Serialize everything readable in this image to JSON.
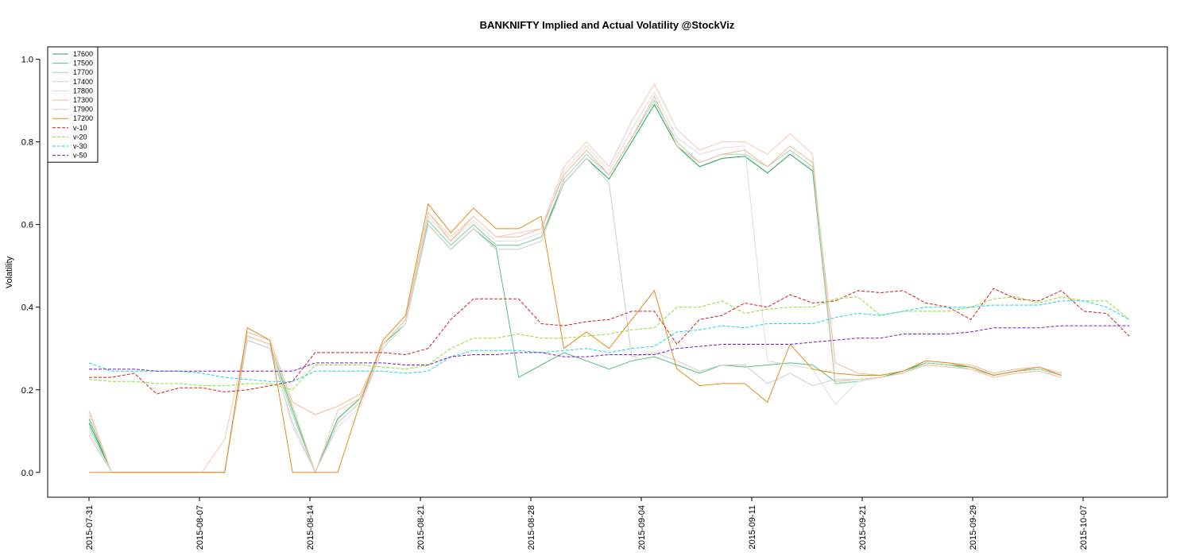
{
  "chart_data": {
    "type": "line",
    "title": "BANKNIFTY Implied and Actual Volatility @StockViz",
    "xlabel": "",
    "ylabel": "Volatility",
    "ylim": [
      -0.06,
      1.03
    ],
    "yticks": [
      "0.0",
      "0.2",
      "0.4",
      "0.6",
      "0.8",
      "1.0"
    ],
    "ytick_values": [
      0,
      0.2,
      0.4,
      0.6,
      0.8,
      1.0
    ],
    "x_index_range": [
      -0.5,
      39.7
    ],
    "xticks": [
      {
        "index": 0,
        "label": "2015-07-31"
      },
      {
        "index": 5,
        "label": "2015-08-07"
      },
      {
        "index": 10,
        "label": "2015-08-14"
      },
      {
        "index": 15,
        "label": "2015-08-21"
      },
      {
        "index": 20,
        "label": "2015-08-28"
      },
      {
        "index": 25,
        "label": "2015-09-04"
      },
      {
        "index": 30,
        "label": "2015-09-11"
      },
      {
        "index": 35,
        "label": "2015-09-21"
      },
      {
        "index": 40,
        "label": "2015-09-29"
      },
      {
        "index": 45,
        "label": "2015-10-07"
      }
    ],
    "legend_position": "top-left",
    "grid": false,
    "series": [
      {
        "name": "17600",
        "color": "#1aa84b",
        "dash": "",
        "values": [
          0.12,
          0,
          0,
          0,
          0,
          0,
          0,
          0.33,
          0.31,
          0.16,
          0.0,
          0.13,
          0.18,
          0.31,
          0.37,
          0.61,
          0.55,
          0.6,
          0.55,
          0.55,
          0.57,
          0.7,
          0.76,
          0.71,
          0.8,
          0.89,
          0.79,
          0.74,
          0.76,
          0.765,
          0.725,
          0.77,
          0.73,
          0.215,
          0.22,
          0.23,
          0.245,
          0.265,
          0.26,
          0.255,
          0.235,
          0.245,
          0.25,
          0.235
        ]
      },
      {
        "name": "17500",
        "color": "#52c17f",
        "dash": "",
        "values": [
          0.13,
          0,
          0,
          0,
          0,
          0,
          0,
          0.33,
          0.31,
          0.15,
          0.0,
          0.13,
          0.18,
          0.31,
          0.36,
          0.6,
          0.54,
          0.59,
          0.545,
          0.23,
          0.26,
          0.29,
          0.27,
          0.25,
          0.27,
          0.28,
          0.26,
          0.24,
          0.26,
          0.255,
          0.26,
          0.265,
          0.26,
          0.22,
          0.225,
          0.23,
          0.24,
          0.26,
          0.255,
          0.25,
          0.23,
          0.24,
          0.245,
          0.23
        ]
      },
      {
        "name": "17700",
        "color": "#9ed8b0",
        "dash": "",
        "values": [
          0.11,
          0,
          0,
          0,
          0,
          0,
          0,
          0.32,
          0.3,
          0.14,
          0.0,
          0.12,
          0.17,
          0.3,
          0.36,
          0.61,
          0.55,
          0.6,
          0.55,
          0.55,
          0.57,
          0.71,
          0.77,
          0.72,
          0.81,
          0.9,
          0.8,
          0.75,
          0.77,
          0.77,
          0.74,
          0.78,
          0.74,
          0.215,
          0.22,
          0.23,
          0.24,
          0.265,
          0.26,
          0.25,
          0.235,
          0.245,
          0.25,
          0.235
        ]
      },
      {
        "name": "17400",
        "color": "#cccccc",
        "dash": "",
        "values": [
          0.09,
          0,
          0,
          0,
          0,
          0,
          0,
          0.32,
          0.3,
          0.12,
          0.0,
          0.12,
          0.17,
          0.3,
          0.36,
          0.6,
          0.54,
          0.59,
          0.54,
          0.54,
          0.56,
          0.7,
          0.76,
          0.7,
          0.28,
          0.29,
          0.27,
          0.245,
          0.26,
          0.26,
          0.215,
          0.24,
          0.21,
          0.225,
          0.225,
          0.23,
          0.24,
          0.26,
          0.255,
          0.25,
          0.23,
          0.24,
          0.245,
          0.23
        ]
      },
      {
        "name": "17800",
        "color": "#dddddd",
        "dash": "",
        "values": [
          0.1,
          0,
          0,
          0,
          0,
          0,
          0,
          0.33,
          0.31,
          0.11,
          0.0,
          0.11,
          0.16,
          0.3,
          0.36,
          0.62,
          0.56,
          0.61,
          0.56,
          0.56,
          0.58,
          0.73,
          0.79,
          0.73,
          0.83,
          0.92,
          0.81,
          0.77,
          0.785,
          0.79,
          0.27,
          0.26,
          0.25,
          0.165,
          0.22,
          0.23,
          0.24,
          0.26,
          0.255,
          0.25,
          0.23,
          0.24,
          0.245,
          0.23
        ]
      },
      {
        "name": "17300",
        "color": "#f0b89a",
        "dash": "",
        "values": [
          0.15,
          0,
          0,
          0,
          0,
          0,
          0,
          0.34,
          0.32,
          0.17,
          0.14,
          0.16,
          0.19,
          0.31,
          0.37,
          0.63,
          0.56,
          0.62,
          0.57,
          0.57,
          0.59,
          0.72,
          0.78,
          0.72,
          0.81,
          0.91,
          0.79,
          0.75,
          0.77,
          0.78,
          0.74,
          0.79,
          0.75,
          0.265,
          0.24,
          0.235,
          0.245,
          0.27,
          0.265,
          0.26,
          0.24,
          0.25,
          0.255,
          0.24
        ]
      },
      {
        "name": "17900",
        "color": "#f5c9b0",
        "dash": "",
        "values": [
          0.14,
          0,
          0,
          0,
          0,
          0,
          0.08,
          0.33,
          0.31,
          0.16,
          0.0,
          0.15,
          0.18,
          0.31,
          0.37,
          0.63,
          0.57,
          0.62,
          0.57,
          0.58,
          0.59,
          0.74,
          0.8,
          0.74,
          0.85,
          0.94,
          0.83,
          0.78,
          0.8,
          0.8,
          0.77,
          0.82,
          0.77,
          0.22,
          0.225,
          0.23,
          0.24,
          0.26,
          0.255,
          0.25,
          0.23,
          0.24,
          0.245,
          0.23
        ]
      },
      {
        "name": "17200",
        "color": "#e38b1c",
        "dash": "",
        "values": [
          0,
          0,
          0,
          0,
          0,
          0,
          0,
          0.35,
          0.32,
          0,
          0,
          0,
          0.17,
          0.32,
          0.38,
          0.65,
          0.58,
          0.64,
          0.59,
          0.59,
          0.62,
          0.3,
          0.34,
          0.3,
          0.37,
          0.44,
          0.25,
          0.21,
          0.215,
          0.215,
          0.17,
          0.31,
          0.25,
          0.24,
          0.235,
          0.235,
          0.245,
          0.27,
          0.265,
          0.255,
          0.235,
          0.245,
          0.255,
          0.235
        ]
      },
      {
        "name": "v-10",
        "color": "#d0201c",
        "dash": "4,2",
        "values": [
          0.23,
          0.23,
          0.24,
          0.19,
          0.205,
          0.205,
          0.195,
          0.2,
          0.21,
          0.22,
          0.29,
          0.29,
          0.29,
          0.29,
          0.285,
          0.3,
          0.37,
          0.42,
          0.42,
          0.42,
          0.36,
          0.355,
          0.365,
          0.37,
          0.39,
          0.39,
          0.31,
          0.37,
          0.38,
          0.41,
          0.4,
          0.43,
          0.41,
          0.415,
          0.44,
          0.435,
          0.44,
          0.41,
          0.4,
          0.37,
          0.445,
          0.42,
          0.415,
          0.44,
          0.39,
          0.385,
          0.33
        ]
      },
      {
        "name": "v-20",
        "color": "#8ee02a",
        "dash": "4,2",
        "values": [
          0.225,
          0.22,
          0.22,
          0.215,
          0.215,
          0.21,
          0.21,
          0.215,
          0.215,
          0.2,
          0.26,
          0.26,
          0.26,
          0.255,
          0.25,
          0.26,
          0.3,
          0.325,
          0.325,
          0.335,
          0.325,
          0.325,
          0.33,
          0.335,
          0.345,
          0.35,
          0.4,
          0.4,
          0.415,
          0.385,
          0.395,
          0.4,
          0.4,
          0.42,
          0.425,
          0.38,
          0.39,
          0.39,
          0.39,
          0.4,
          0.42,
          0.425,
          0.41,
          0.425,
          0.415,
          0.415,
          0.37
        ]
      },
      {
        "name": "v-30",
        "color": "#19d6e8",
        "dash": "4,2",
        "values": [
          0.265,
          0.245,
          0.245,
          0.245,
          0.245,
          0.24,
          0.23,
          0.225,
          0.22,
          0.22,
          0.245,
          0.245,
          0.245,
          0.245,
          0.24,
          0.245,
          0.28,
          0.295,
          0.295,
          0.295,
          0.29,
          0.295,
          0.3,
          0.29,
          0.3,
          0.305,
          0.34,
          0.345,
          0.355,
          0.35,
          0.36,
          0.36,
          0.36,
          0.375,
          0.385,
          0.38,
          0.39,
          0.4,
          0.4,
          0.4,
          0.405,
          0.405,
          0.405,
          0.415,
          0.415,
          0.4,
          0.37
        ]
      },
      {
        "name": "v-50",
        "color": "#7a19c8",
        "dash": "4,2",
        "values": [
          0.25,
          0.25,
          0.25,
          0.245,
          0.245,
          0.245,
          0.245,
          0.245,
          0.245,
          0.245,
          0.265,
          0.265,
          0.265,
          0.265,
          0.26,
          0.26,
          0.28,
          0.285,
          0.285,
          0.29,
          0.29,
          0.28,
          0.28,
          0.285,
          0.285,
          0.285,
          0.3,
          0.305,
          0.31,
          0.31,
          0.31,
          0.31,
          0.315,
          0.32,
          0.325,
          0.325,
          0.335,
          0.335,
          0.335,
          0.34,
          0.35,
          0.35,
          0.35,
          0.355,
          0.355,
          0.355,
          0.355
        ]
      }
    ]
  }
}
